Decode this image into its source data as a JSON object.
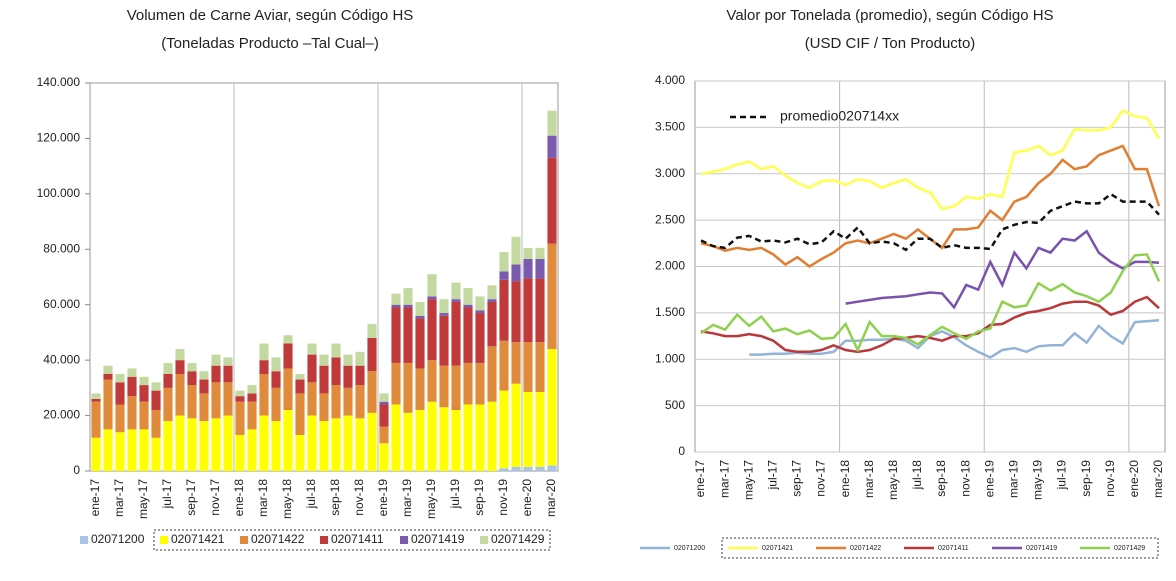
{
  "chart_data": [
    {
      "type": "stacked_bar",
      "title": "Volumen de Carne Aviar, según Código HS",
      "subtitle": "(Toneladas Producto –Tal Cual–)",
      "categories": [
        "ene-17",
        null,
        "mar-17",
        null,
        "may-17",
        null,
        "jul-17",
        null,
        "sep-17",
        null,
        "nov-17",
        null,
        "ene-18",
        null,
        "mar-18",
        null,
        "may-18",
        null,
        "jul-18",
        null,
        "sep-18",
        null,
        "nov-18",
        null,
        "ene-19",
        null,
        "mar-19",
        null,
        "may-19",
        null,
        "jul-19",
        null,
        "sep-19",
        null,
        "nov-19",
        null,
        "ene-20",
        null,
        "mar-20"
      ],
      "ylim": [
        0,
        140000
      ],
      "yticks": [
        0,
        {
          "value": 20000,
          "label": "20.000"
        },
        {
          "value": 40000,
          "label": "40.000"
        },
        {
          "value": 60000,
          "label": "60.000"
        },
        {
          "value": 80000,
          "label": "80.000"
        },
        {
          "value": 100000,
          "label": "100.000"
        },
        {
          "value": 120000,
          "label": "120.000"
        },
        {
          "value": 140000,
          "label": "140.000"
        }
      ],
      "series": [
        {
          "name": "02071200",
          "color": "#a9c4e8",
          "values": [
            0,
            0,
            0,
            0,
            0,
            0,
            0,
            0,
            0,
            0,
            0,
            0,
            0,
            0,
            0,
            0,
            0,
            0,
            0,
            0,
            0,
            0,
            0,
            0,
            0,
            0,
            0,
            0,
            0,
            0,
            0,
            0,
            0,
            0,
            1000,
            1500,
            1500,
            1500,
            2000
          ]
        },
        {
          "name": "02071421",
          "color": "#ffff00",
          "values": [
            12000,
            15000,
            14000,
            15000,
            15000,
            12000,
            18000,
            20000,
            19000,
            18000,
            19000,
            20000,
            13000,
            15000,
            20000,
            18000,
            22000,
            13000,
            20000,
            18000,
            19000,
            20000,
            19000,
            21000,
            10000,
            24000,
            21000,
            22000,
            25000,
            23000,
            22000,
            24000,
            24000,
            25000,
            28000,
            30000,
            27000,
            27000,
            42000
          ]
        },
        {
          "name": "02071422",
          "color": "#e08a3c",
          "values": [
            13000,
            18000,
            10000,
            12000,
            10000,
            10000,
            12000,
            15000,
            12000,
            10000,
            13000,
            12000,
            12000,
            10000,
            15000,
            12000,
            15000,
            15000,
            12000,
            10000,
            12000,
            10000,
            12000,
            15000,
            6000,
            15000,
            18000,
            15000,
            15000,
            15000,
            16000,
            15000,
            15000,
            20000,
            18000,
            15000,
            18000,
            18000,
            38000
          ]
        },
        {
          "name": "02071411",
          "color": "#c0393b",
          "values": [
            1000,
            2000,
            8000,
            7000,
            6000,
            7000,
            5000,
            5000,
            5000,
            5000,
            6000,
            6000,
            2000,
            3000,
            5000,
            6000,
            9000,
            5000,
            10000,
            10000,
            10000,
            8000,
            7000,
            12000,
            8000,
            20000,
            20000,
            18000,
            22000,
            18000,
            23000,
            20000,
            18000,
            16000,
            22000,
            22000,
            23000,
            23000,
            31000
          ]
        },
        {
          "name": "02071419",
          "color": "#7b5bb0",
          "values": [
            0,
            0,
            0,
            0,
            0,
            0,
            0,
            0,
            0,
            0,
            0,
            0,
            0,
            0,
            0,
            0,
            0,
            0,
            0,
            0,
            0,
            0,
            0,
            0,
            1000,
            1000,
            1000,
            1000,
            1000,
            1000,
            1000,
            1000,
            1000,
            1000,
            3000,
            6000,
            7000,
            7000,
            8000
          ]
        },
        {
          "name": "02071429",
          "color": "#c4d9a0",
          "values": [
            2000,
            3000,
            3000,
            3000,
            3000,
            3000,
            4000,
            4000,
            3000,
            3000,
            4000,
            3000,
            2000,
            3000,
            6000,
            5000,
            3000,
            2000,
            4000,
            4000,
            5000,
            4000,
            5000,
            5000,
            3000,
            4000,
            6000,
            5000,
            8000,
            5000,
            6000,
            6000,
            5000,
            5000,
            7000,
            10000,
            4000,
            4000,
            9000
          ]
        }
      ]
    },
    {
      "type": "line",
      "title": "Valor por Tonelada (promedio), según Código HS",
      "subtitle": "(USD CIF / Ton Producto)",
      "categories": [
        "ene-17",
        null,
        "mar-17",
        null,
        "may-17",
        null,
        "jul-17",
        null,
        "sep-17",
        null,
        "nov-17",
        null,
        "ene-18",
        null,
        "mar-18",
        null,
        "may-18",
        null,
        "jul-18",
        null,
        "sep-18",
        null,
        "nov-18",
        null,
        "ene-19",
        null,
        "mar-19",
        null,
        "may-19",
        null,
        "jul-19",
        null,
        "sep-19",
        null,
        "nov-19",
        null,
        "ene-20",
        null,
        "mar-20"
      ],
      "ylim": [
        0,
        4000
      ],
      "yticks": [
        0,
        500,
        {
          "value": 1000,
          "label": "1.000"
        },
        {
          "value": 1500,
          "label": "1.500"
        },
        {
          "value": 2000,
          "label": "2.000"
        },
        {
          "value": 2500,
          "label": "2.500"
        },
        {
          "value": 3000,
          "label": "3.000"
        },
        {
          "value": 3500,
          "label": "3.500"
        },
        {
          "value": 4000,
          "label": "4.000"
        }
      ],
      "grid": true,
      "series": [
        {
          "name": "02071200",
          "color": "#93b3d9",
          "values": [
            null,
            null,
            null,
            null,
            1050,
            1050,
            1060,
            1060,
            1070,
            1060,
            1060,
            1080,
            1200,
            1200,
            1210,
            1210,
            1220,
            1200,
            1120,
            1250,
            1300,
            1240,
            1150,
            1080,
            1020,
            1100,
            1120,
            1080,
            1140,
            1150,
            1150,
            1280,
            1180,
            1360,
            1250,
            1170,
            1400,
            1410,
            1420
          ]
        },
        {
          "name": "02071421",
          "color": "#ffff4d",
          "values": [
            3000,
            3020,
            3050,
            3100,
            3130,
            3050,
            3080,
            2980,
            2900,
            2850,
            2920,
            2930,
            2880,
            2940,
            2920,
            2850,
            2900,
            2940,
            2850,
            2800,
            2620,
            2650,
            2750,
            2730,
            2780,
            2750,
            3230,
            3250,
            3300,
            3200,
            3250,
            3480,
            3470,
            3470,
            3500,
            3680,
            3620,
            3600,
            3380
          ]
        },
        {
          "name": "02071422",
          "color": "#e07e32",
          "values": [
            2250,
            2220,
            2170,
            2200,
            2180,
            2200,
            2130,
            2020,
            2100,
            2000,
            2080,
            2150,
            2250,
            2280,
            2250,
            2300,
            2350,
            2300,
            2400,
            2300,
            2200,
            2400,
            2400,
            2420,
            2600,
            2500,
            2700,
            2750,
            2900,
            3000,
            3150,
            3050,
            3080,
            3200,
            3250,
            3300,
            3050,
            3050,
            2650
          ]
        },
        {
          "name": "02071411",
          "color": "#b8383b",
          "values": [
            1300,
            1280,
            1250,
            1250,
            1270,
            1250,
            1200,
            1100,
            1080,
            1080,
            1100,
            1150,
            1100,
            1080,
            1100,
            1150,
            1220,
            1230,
            1250,
            1230,
            1200,
            1250,
            1250,
            1280,
            1370,
            1380,
            1450,
            1500,
            1520,
            1550,
            1600,
            1620,
            1620,
            1580,
            1480,
            1520,
            1620,
            1670,
            1550
          ]
        },
        {
          "name": "02071419",
          "color": "#7a52ad",
          "values": [
            null,
            null,
            null,
            null,
            null,
            null,
            null,
            null,
            null,
            null,
            null,
            null,
            1600,
            1620,
            1640,
            1660,
            1670,
            1680,
            1700,
            1720,
            1710,
            1560,
            1800,
            1750,
            2050,
            1800,
            2150,
            1980,
            2200,
            2150,
            2300,
            2280,
            2380,
            2150,
            2050,
            1980,
            2050,
            2050,
            2040
          ]
        },
        {
          "name": "02071429",
          "color": "#8fd14f",
          "values": [
            1280,
            1370,
            1320,
            1480,
            1360,
            1460,
            1300,
            1330,
            1270,
            1310,
            1220,
            1230,
            1380,
            1100,
            1400,
            1250,
            1250,
            1230,
            1160,
            1260,
            1350,
            1280,
            1220,
            1300,
            1330,
            1620,
            1560,
            1580,
            1820,
            1740,
            1810,
            1720,
            1680,
            1620,
            1720,
            1950,
            2120,
            2130,
            1840
          ]
        },
        {
          "name": "promedio020714xx",
          "color": "#111111",
          "dashed": true,
          "values": [
            2280,
            2220,
            2200,
            2310,
            2330,
            2270,
            2280,
            2260,
            2300,
            2240,
            2260,
            2380,
            2300,
            2420,
            2250,
            2270,
            2250,
            2180,
            2300,
            2300,
            2200,
            2230,
            2200,
            2200,
            2190,
            2400,
            2450,
            2480,
            2470,
            2600,
            2650,
            2700,
            2680,
            2680,
            2780,
            2700,
            2700,
            2700,
            2560
          ]
        }
      ]
    }
  ]
}
